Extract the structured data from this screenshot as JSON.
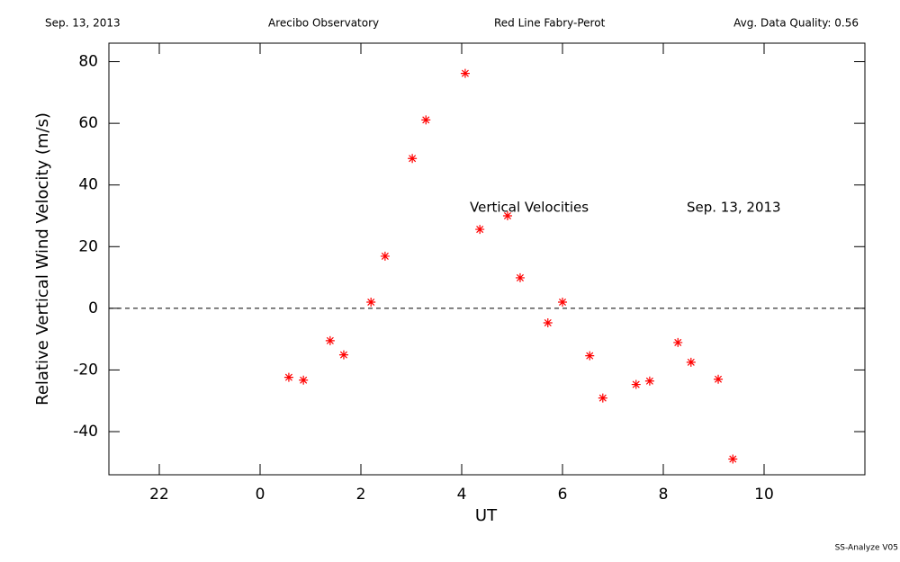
{
  "chart_data": {
    "type": "scatter",
    "header": [
      "Sep. 13, 2013",
      "Arecibo Observatory",
      "Red Line Fabry-Perot",
      "Avg. Data Quality: 0.56"
    ],
    "xlabel": "UT",
    "ylabel": "Relative Vertical Wind Velocity (m/s)",
    "annotations": [
      "Vertical Velocities",
      "Sep. 13, 2013"
    ],
    "footer": "SS-Analyze V05",
    "xlim": [
      -3,
      12
    ],
    "xticks": [
      {
        "value": -2,
        "label": "22"
      },
      0,
      2,
      4,
      6,
      8,
      10
    ],
    "ylim": [
      -54,
      86
    ],
    "yticks": [
      -40,
      -20,
      0,
      20,
      40,
      60,
      80
    ],
    "color": "#ff0000",
    "x": [
      0.57,
      0.86,
      1.39,
      1.66,
      2.2,
      2.48,
      3.02,
      3.29,
      4.07,
      4.36,
      4.91,
      5.16,
      5.71,
      6.0,
      6.54,
      6.8,
      7.46,
      7.73,
      8.29,
      8.55,
      9.09,
      9.38
    ],
    "values": [
      -22.4,
      -23.3,
      -10.5,
      -15.1,
      2.0,
      16.9,
      48.6,
      61.1,
      76.2,
      25.6,
      30.0,
      9.9,
      -4.7,
      2.0,
      -15.4,
      -29.1,
      -24.7,
      -23.6,
      -11.1,
      -17.5,
      -23.0,
      -48.9
    ]
  }
}
